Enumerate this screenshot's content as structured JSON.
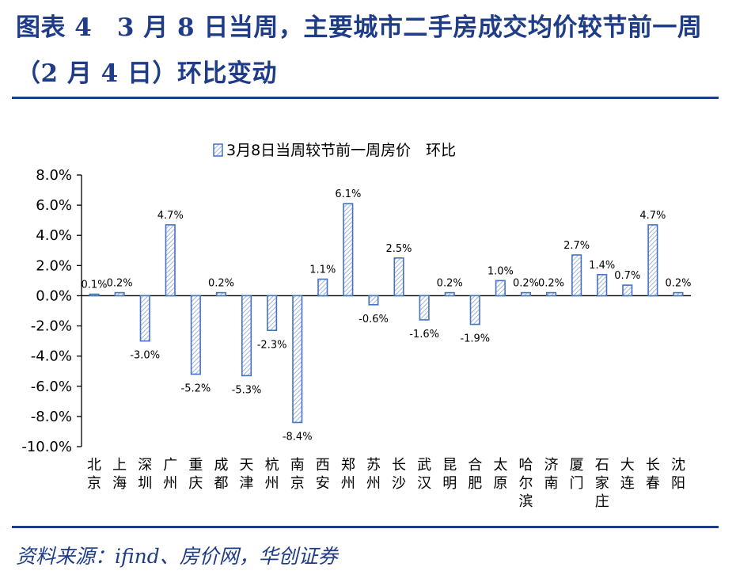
{
  "header": {
    "title": "图表 4　3 月 8 日当周，主要城市二手房成交均价较节前一周（2 月 4 日）环比变动"
  },
  "footer": {
    "source": "资料来源：ifind、房价网，华创证券"
  },
  "colors": {
    "brand": "#1f3c88",
    "bar_stroke": "#4472c4",
    "bar_hatch": "#9db3e0"
  },
  "chart_data": {
    "type": "bar",
    "legend": "3月8日当周较节前一周房价　环比",
    "legend_position": "top-center",
    "categories": [
      "北京",
      "上海",
      "深圳",
      "广州",
      "重庆",
      "成都",
      "天津",
      "杭州",
      "南京",
      "西安",
      "郑州",
      "苏州",
      "长沙",
      "武汉",
      "昆明",
      "合肥",
      "太原",
      "哈尔滨",
      "济南",
      "厦门",
      "石家庄",
      "大连",
      "长春",
      "沈阳"
    ],
    "values": [
      0.1,
      0.2,
      -3.0,
      4.7,
      -5.2,
      0.2,
      -5.3,
      -2.3,
      -8.4,
      1.1,
      6.1,
      -0.6,
      2.5,
      -1.6,
      0.2,
      -1.9,
      1.0,
      0.2,
      0.2,
      2.7,
      1.4,
      0.7,
      4.7,
      0.2
    ],
    "data_labels": [
      "0.1%",
      "0.2%",
      "-3.0%",
      "4.7%",
      "-5.2%",
      "0.2%",
      "-5.3%",
      "-2.3%",
      "-8.4%",
      "1.1%",
      "6.1%",
      "-0.6%",
      "2.5%",
      "-1.6%",
      "0.2%",
      "-1.9%",
      "1.0%",
      "0.2%",
      "0.2%",
      "2.7%",
      "1.4%",
      "0.7%",
      "4.7%",
      "0.2%"
    ],
    "yticks": [
      8,
      6,
      4,
      2,
      0,
      -2,
      -4,
      -6,
      -8,
      -10
    ],
    "ytick_labels": [
      "8.0%",
      "6.0%",
      "4.0%",
      "2.0%",
      "0.0%",
      "-2.0%",
      "-4.0%",
      "-6.0%",
      "-8.0%",
      "-10.0%"
    ],
    "ylim": [
      -10,
      8
    ],
    "grid": false
  }
}
